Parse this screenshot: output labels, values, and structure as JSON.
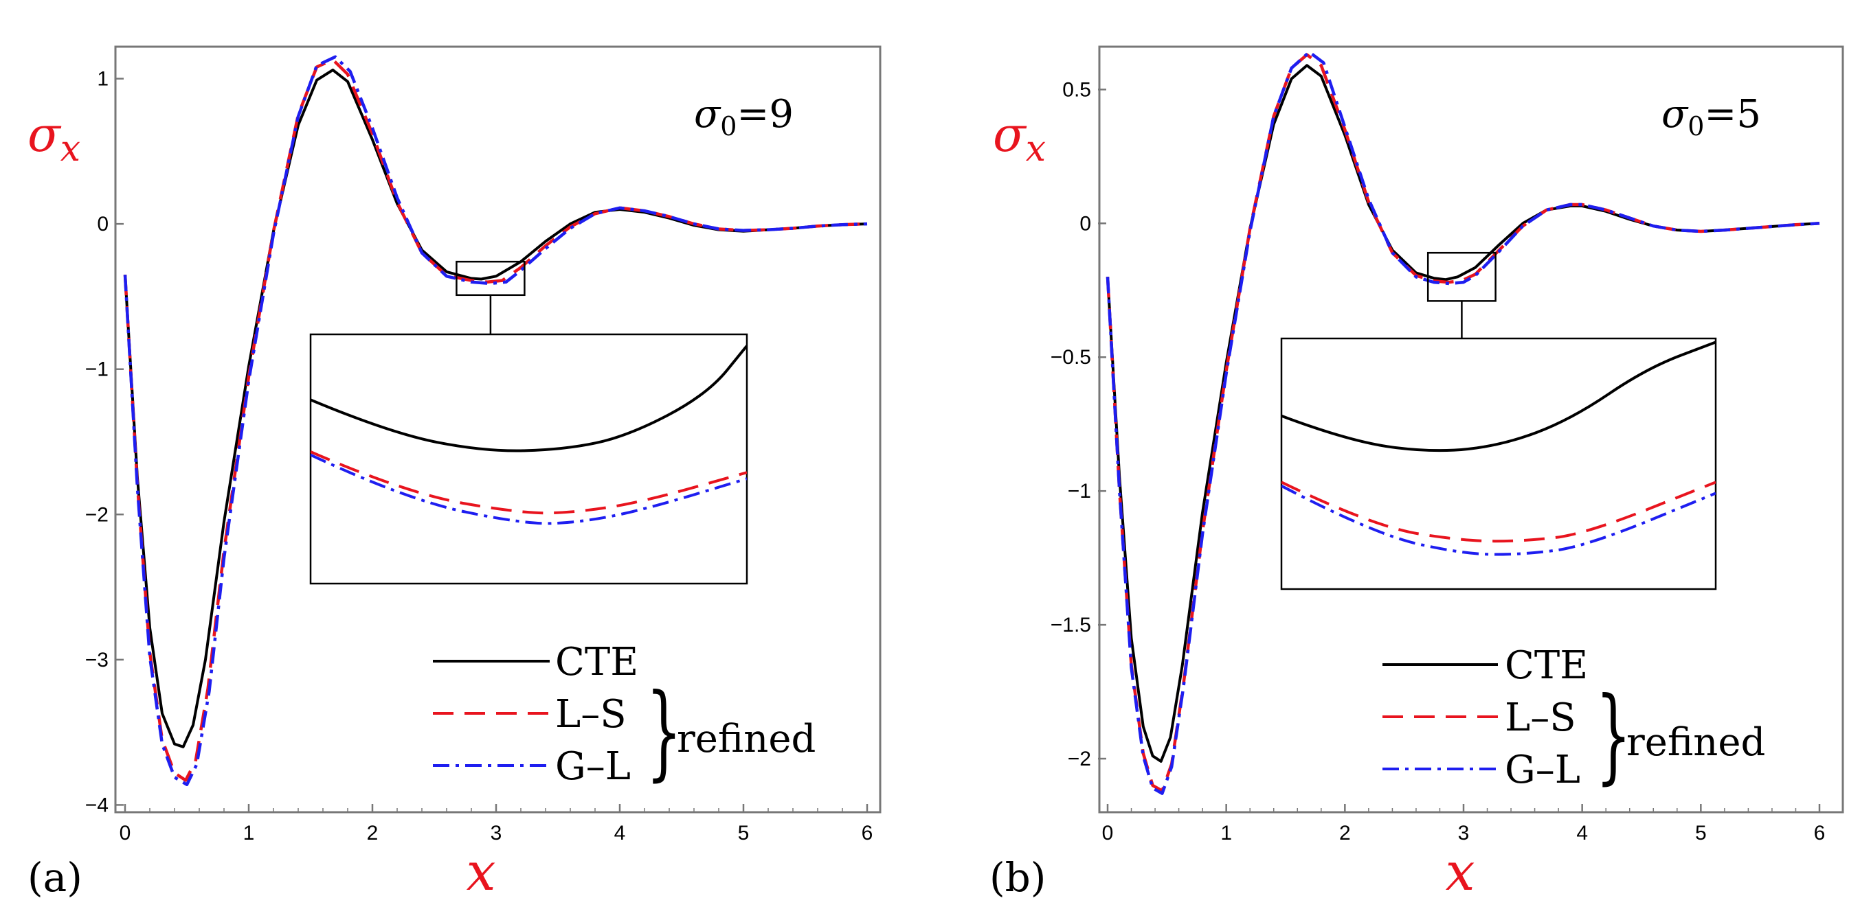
{
  "chart_data": [
    {
      "type": "line",
      "panel_label": "(a)",
      "param_label": "σ0=9",
      "param_symbol": "σ",
      "param_sub": "0",
      "param_value": "=9",
      "xlabel": "x",
      "ylabel_symbol": "σ",
      "ylabel_sub": "x",
      "xlim": [
        0,
        6
      ],
      "ylim": [
        -4.05,
        1.22
      ],
      "x_ticks": [
        0,
        1,
        2,
        3,
        4,
        5,
        6
      ],
      "x_tick_labels": [
        "0",
        "1",
        "2",
        "3",
        "4",
        "5",
        "6"
      ],
      "y_ticks": [
        1,
        0,
        -1,
        -2,
        -3,
        -4
      ],
      "y_tick_labels": [
        "1",
        "0",
        "−1",
        "−2",
        "−3",
        "−4"
      ],
      "zoom_box": {
        "x": [
          2.68,
          3.23
        ],
        "y": [
          -0.49,
          -0.26
        ]
      },
      "inset_y": [
        -0.445,
        -0.325
      ],
      "series": [
        {
          "name": "CTE",
          "color": "#000000",
          "dash": "solid",
          "x": [
            0,
            0.1,
            0.2,
            0.3,
            0.4,
            0.47,
            0.55,
            0.65,
            0.8,
            1.0,
            1.2,
            1.4,
            1.55,
            1.68,
            1.8,
            2.0,
            2.2,
            2.4,
            2.6,
            2.8,
            2.88,
            3.0,
            3.2,
            3.4,
            3.6,
            3.8,
            4.0,
            4.2,
            4.4,
            4.6,
            4.8,
            5.0,
            5.2,
            5.4,
            5.6,
            5.8,
            6.0
          ],
          "y": [
            -0.35,
            -1.75,
            -2.78,
            -3.37,
            -3.58,
            -3.6,
            -3.45,
            -3.0,
            -2.05,
            -0.98,
            -0.05,
            0.68,
            0.99,
            1.06,
            0.98,
            0.58,
            0.14,
            -0.18,
            -0.33,
            -0.375,
            -0.38,
            -0.36,
            -0.26,
            -0.12,
            0.0,
            0.08,
            0.1,
            0.08,
            0.04,
            -0.01,
            -0.04,
            -0.05,
            -0.04,
            -0.03,
            -0.015,
            -0.005,
            0.0
          ]
        },
        {
          "name": "L–S",
          "color": "#e8141e",
          "dash": "30,16",
          "x": [
            0,
            0.1,
            0.2,
            0.3,
            0.4,
            0.49,
            0.57,
            0.67,
            0.8,
            1.0,
            1.2,
            1.4,
            1.55,
            1.68,
            1.8,
            2.0,
            2.2,
            2.4,
            2.6,
            2.8,
            2.93,
            3.05,
            3.2,
            3.4,
            3.6,
            3.8,
            4.0,
            4.2,
            4.4,
            4.6,
            4.8,
            5.0,
            5.2,
            5.4,
            5.6,
            5.8,
            6.0
          ],
          "y": [
            -0.35,
            -1.8,
            -2.95,
            -3.55,
            -3.78,
            -3.83,
            -3.7,
            -3.2,
            -2.25,
            -1.05,
            -0.05,
            0.75,
            1.08,
            1.13,
            1.03,
            0.62,
            0.15,
            -0.2,
            -0.355,
            -0.39,
            -0.4,
            -0.39,
            -0.3,
            -0.15,
            -0.02,
            0.07,
            0.11,
            0.09,
            0.05,
            0.0,
            -0.035,
            -0.045,
            -0.04,
            -0.03,
            -0.015,
            -0.005,
            0.0
          ]
        },
        {
          "name": "G–L",
          "color": "#1e1ef0",
          "dash": "24,9,5,9",
          "x": [
            0,
            0.1,
            0.2,
            0.3,
            0.4,
            0.5,
            0.58,
            0.68,
            0.8,
            1.0,
            1.2,
            1.4,
            1.55,
            1.7,
            1.82,
            2.0,
            2.2,
            2.4,
            2.6,
            2.8,
            2.95,
            3.08,
            3.2,
            3.4,
            3.6,
            3.8,
            4.0,
            4.2,
            4.4,
            4.6,
            4.8,
            5.0,
            5.2,
            5.4,
            5.6,
            5.8,
            6.0
          ],
          "y": [
            -0.35,
            -1.82,
            -2.98,
            -3.58,
            -3.81,
            -3.86,
            -3.72,
            -3.22,
            -2.3,
            -1.08,
            -0.07,
            0.74,
            1.09,
            1.15,
            1.05,
            0.66,
            0.18,
            -0.2,
            -0.36,
            -0.4,
            -0.41,
            -0.4,
            -0.32,
            -0.17,
            -0.03,
            0.07,
            0.11,
            0.09,
            0.05,
            0.0,
            -0.035,
            -0.045,
            -0.04,
            -0.03,
            -0.015,
            -0.005,
            0.0
          ]
        }
      ],
      "inset_series": [
        {
          "name": "CTE",
          "x": [
            2.68,
            2.78,
            2.9,
            3.0,
            3.08,
            3.18,
            3.23
          ],
          "y": [
            -0.3565,
            -0.3725,
            -0.3815,
            -0.3805,
            -0.374,
            -0.354,
            -0.3305
          ]
        },
        {
          "name": "L–S",
          "x": [
            2.68,
            2.8,
            2.95,
            3.02,
            3.1,
            3.23
          ],
          "y": [
            -0.3815,
            -0.4015,
            -0.4115,
            -0.4105,
            -0.4055,
            -0.3915
          ]
        },
        {
          "name": "G–L",
          "x": [
            2.68,
            2.8,
            2.95,
            3.02,
            3.1,
            3.23
          ],
          "y": [
            -0.383,
            -0.4045,
            -0.4165,
            -0.4155,
            -0.4095,
            -0.3945
          ]
        }
      ]
    },
    {
      "type": "line",
      "panel_label": "(b)",
      "param_label": "σ0=5",
      "param_symbol": "σ",
      "param_sub": "0",
      "param_value": "=5",
      "xlabel": "x",
      "ylabel_symbol": "σ",
      "ylabel_sub": "x",
      "xlim": [
        0,
        6
      ],
      "ylim": [
        -2.2,
        0.66
      ],
      "x_ticks": [
        0,
        1,
        2,
        3,
        4,
        5,
        6
      ],
      "x_tick_labels": [
        "0",
        "1",
        "2",
        "3",
        "4",
        "5",
        "6"
      ],
      "y_ticks": [
        0.5,
        0,
        -0.5,
        -1,
        -1.5,
        -2
      ],
      "y_tick_labels": [
        "0.5",
        "0",
        "−0.5",
        "−1",
        "−1.5",
        "−2"
      ],
      "zoom_box": {
        "x": [
          2.7,
          3.27
        ],
        "y": [
          -0.29,
          -0.11
        ]
      },
      "inset_y": [
        -0.232,
        -0.198
      ],
      "series": [
        {
          "name": "CTE",
          "color": "#000000",
          "dash": "solid",
          "x": [
            0,
            0.1,
            0.2,
            0.3,
            0.38,
            0.45,
            0.53,
            0.63,
            0.8,
            1.0,
            1.2,
            1.4,
            1.55,
            1.68,
            1.8,
            2.0,
            2.2,
            2.4,
            2.6,
            2.75,
            2.85,
            2.95,
            3.1,
            3.3,
            3.5,
            3.7,
            3.9,
            4.0,
            4.2,
            4.4,
            4.6,
            4.8,
            5.0,
            5.2,
            5.5,
            5.8,
            6.0
          ],
          "y": [
            -0.2,
            -0.95,
            -1.55,
            -1.88,
            -1.99,
            -2.01,
            -1.92,
            -1.65,
            -1.08,
            -0.52,
            -0.02,
            0.37,
            0.54,
            0.59,
            0.55,
            0.33,
            0.07,
            -0.1,
            -0.185,
            -0.205,
            -0.21,
            -0.2,
            -0.165,
            -0.08,
            0.0,
            0.05,
            0.065,
            0.065,
            0.045,
            0.015,
            -0.01,
            -0.025,
            -0.03,
            -0.025,
            -0.015,
            -0.005,
            0.0
          ]
        },
        {
          "name": "L–S",
          "color": "#e8141e",
          "dash": "30,16",
          "x": [
            0,
            0.1,
            0.2,
            0.3,
            0.38,
            0.46,
            0.54,
            0.64,
            0.8,
            1.0,
            1.2,
            1.4,
            1.55,
            1.68,
            1.8,
            2.0,
            2.2,
            2.4,
            2.6,
            2.75,
            2.87,
            2.98,
            3.1,
            3.3,
            3.5,
            3.7,
            3.9,
            4.0,
            4.2,
            4.4,
            4.6,
            4.8,
            5.0,
            5.2,
            5.5,
            5.8,
            6.0
          ],
          "y": [
            -0.2,
            -1.0,
            -1.65,
            -1.98,
            -2.1,
            -2.12,
            -2.02,
            -1.72,
            -1.15,
            -0.55,
            -0.02,
            0.4,
            0.58,
            0.63,
            0.59,
            0.35,
            0.08,
            -0.11,
            -0.195,
            -0.215,
            -0.22,
            -0.215,
            -0.19,
            -0.1,
            -0.01,
            0.05,
            0.07,
            0.07,
            0.05,
            0.02,
            -0.01,
            -0.025,
            -0.03,
            -0.025,
            -0.015,
            -0.005,
            0.0
          ]
        },
        {
          "name": "G–L",
          "color": "#1e1ef0",
          "dash": "24,9,5,9",
          "x": [
            0,
            0.1,
            0.2,
            0.3,
            0.38,
            0.46,
            0.54,
            0.64,
            0.8,
            1.0,
            1.2,
            1.4,
            1.55,
            1.7,
            1.82,
            2.0,
            2.2,
            2.4,
            2.6,
            2.75,
            2.88,
            3.0,
            3.1,
            3.3,
            3.5,
            3.7,
            3.9,
            4.0,
            4.2,
            4.4,
            4.6,
            4.8,
            5.0,
            5.2,
            5.5,
            5.8,
            6.0
          ],
          "y": [
            -0.2,
            -1.0,
            -1.66,
            -1.99,
            -2.11,
            -2.13,
            -2.03,
            -1.73,
            -1.16,
            -0.56,
            -0.03,
            0.4,
            0.58,
            0.64,
            0.6,
            0.36,
            0.09,
            -0.11,
            -0.2,
            -0.22,
            -0.225,
            -0.22,
            -0.195,
            -0.105,
            -0.01,
            0.05,
            0.07,
            0.07,
            0.05,
            0.02,
            -0.01,
            -0.025,
            -0.03,
            -0.025,
            -0.015,
            -0.005,
            0.0
          ]
        }
      ],
      "inset_series": [
        {
          "name": "CTE",
          "x": [
            2.7,
            2.79,
            2.9,
            2.99,
            3.08,
            3.18,
            3.27
          ],
          "y": [
            -0.2085,
            -0.212,
            -0.2135,
            -0.2125,
            -0.209,
            -0.202,
            -0.1985
          ]
        },
        {
          "name": "L–S",
          "x": [
            2.7,
            2.82,
            2.94,
            3.02,
            3.1,
            3.27
          ],
          "y": [
            -0.2175,
            -0.2235,
            -0.2255,
            -0.2255,
            -0.2245,
            -0.2175
          ]
        },
        {
          "name": "G–L",
          "x": [
            2.7,
            2.82,
            2.94,
            3.02,
            3.1,
            3.27
          ],
          "y": [
            -0.218,
            -0.2245,
            -0.2273,
            -0.2273,
            -0.2262,
            -0.219
          ]
        }
      ]
    }
  ],
  "legend": {
    "entries": [
      "CTE",
      "L–S",
      "G–L"
    ],
    "group_label": "refined",
    "brace": "}"
  }
}
